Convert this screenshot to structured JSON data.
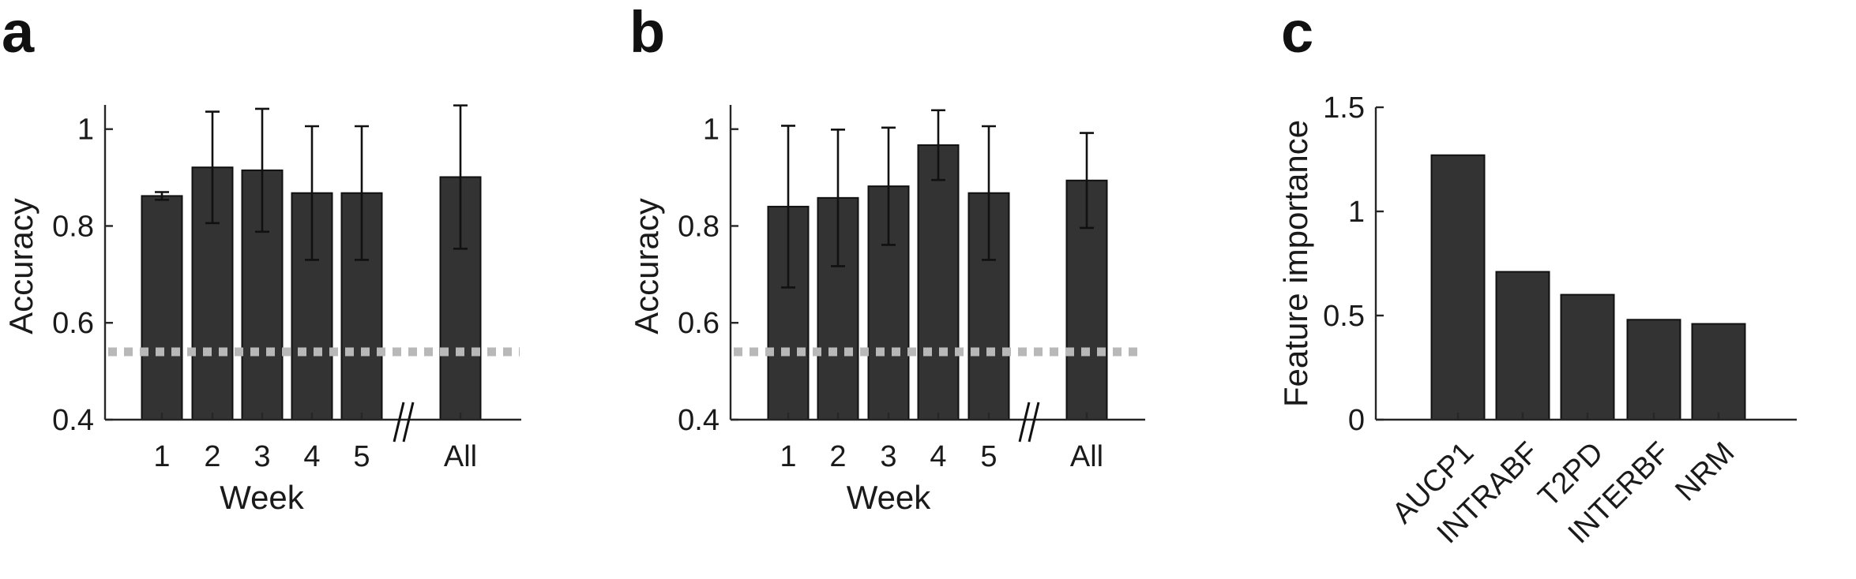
{
  "chart_data": [
    {
      "panel": "a",
      "type": "bar",
      "categories": [
        "1",
        "2",
        "3",
        "4",
        "5",
        "All"
      ],
      "values": [
        0.862,
        0.921,
        0.915,
        0.868,
        0.868,
        0.901
      ],
      "error": [
        0.008,
        0.115,
        0.127,
        0.138,
        0.138,
        0.148
      ],
      "chance_level": 0.54,
      "xlabel": "Week",
      "ylabel": "Accuracy",
      "ylim": [
        0.4,
        1.05
      ],
      "yticks": [
        0.4,
        0.6,
        0.8,
        1
      ],
      "yticklabels": [
        "0.4",
        "0.6",
        "0.8",
        "1"
      ],
      "axis_break_before": "All",
      "grid": false
    },
    {
      "panel": "b",
      "type": "bar",
      "categories": [
        "1",
        "2",
        "3",
        "4",
        "5",
        "All"
      ],
      "values": [
        0.84,
        0.858,
        0.882,
        0.967,
        0.868,
        0.894
      ],
      "error": [
        0.167,
        0.141,
        0.121,
        0.072,
        0.138,
        0.098
      ],
      "chance_level": 0.54,
      "xlabel": "Week",
      "ylabel": "Accuracy",
      "ylim": [
        0.4,
        1.05
      ],
      "yticks": [
        0.4,
        0.6,
        0.8,
        1
      ],
      "yticklabels": [
        "0.4",
        "0.6",
        "0.8",
        "1"
      ],
      "axis_break_before": "All",
      "grid": false
    },
    {
      "panel": "c",
      "type": "bar",
      "categories": [
        "AUCP1",
        "INTRABF",
        "T2PD",
        "INTERBF",
        "NRM"
      ],
      "values": [
        1.27,
        0.71,
        0.6,
        0.48,
        0.46
      ],
      "xlabel": "",
      "ylabel": "Feature importance",
      "ylim": [
        0,
        1.5
      ],
      "yticks": [
        0,
        0.5,
        1,
        1.5
      ],
      "yticklabels": [
        "0",
        "0.5",
        "1",
        "1.5"
      ],
      "rotated_tick_labels": true,
      "grid": false
    }
  ]
}
